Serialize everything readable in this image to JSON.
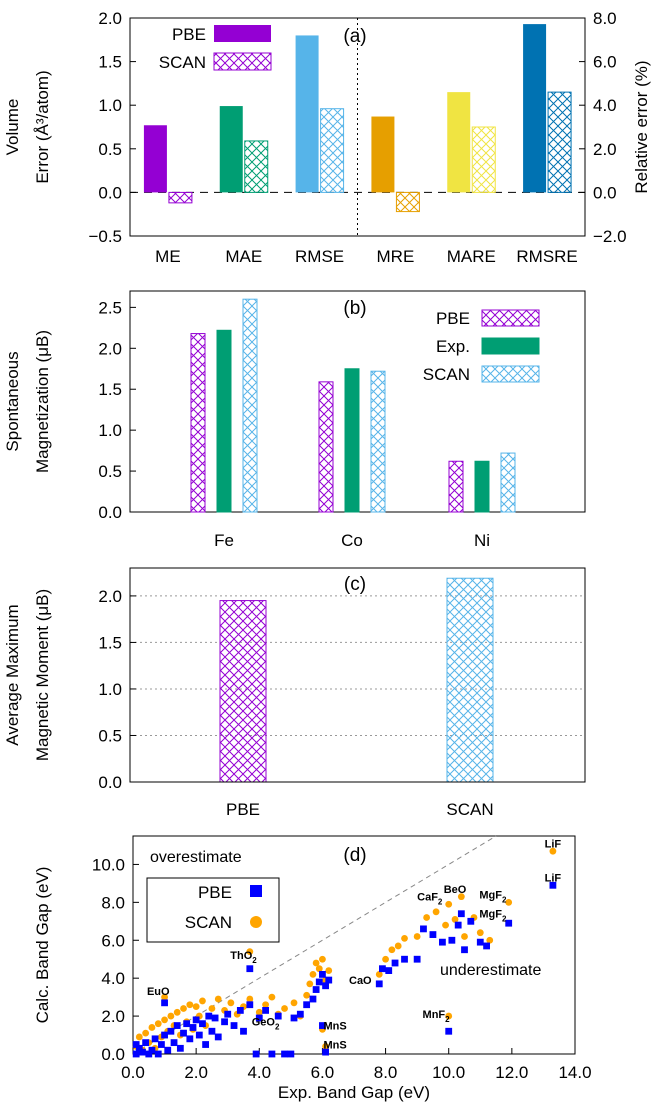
{
  "chart_data": [
    {
      "panel": "(a)",
      "type": "bar",
      "categories": [
        "ME",
        "MAE",
        "RMSE",
        "MRE",
        "MARE",
        "RMSRE"
      ],
      "series": [
        {
          "name": "PBE",
          "values": [
            0.77,
            0.99,
            1.8,
            0.87,
            1.15,
            1.93
          ]
        },
        {
          "name": "SCAN",
          "values": [
            -0.12,
            0.59,
            0.96,
            -0.22,
            0.75,
            1.15
          ]
        }
      ],
      "bar_colors": [
        "#9400d3",
        "#009e73",
        "#56b4e9",
        "#e69f00",
        "#f0e442",
        "#0072b2"
      ],
      "ylabel_lines": [
        "Volume",
        "Error (Å³/atom)"
      ],
      "ylabel_right": "Relative error (%)",
      "ylim": [
        -0.5,
        2.0
      ],
      "ylim_right": [
        -2.0,
        8.0
      ],
      "yticks": [
        "−0.5",
        "0.0",
        "0.5",
        "1.0",
        "1.5",
        "2.0"
      ],
      "yticks_right": [
        "−2.0",
        "0.0",
        "2.0",
        "4.0",
        "6.0",
        "8.0"
      ],
      "legend_position": "top-left",
      "secondary_axis_categories": [
        "MRE",
        "MARE",
        "RMSRE"
      ]
    },
    {
      "panel": "(b)",
      "type": "bar",
      "categories": [
        "Fe",
        "Co",
        "Ni"
      ],
      "series": [
        {
          "name": "PBE",
          "values": [
            2.18,
            1.59,
            0.62
          ],
          "color": "#9400d3"
        },
        {
          "name": "Exp.",
          "values": [
            2.22,
            1.75,
            0.62
          ],
          "color": "#009e73"
        },
        {
          "name": "SCAN",
          "values": [
            2.6,
            1.72,
            0.72
          ],
          "color": "#56b4e9"
        }
      ],
      "ylabel_lines": [
        "Spontaneous",
        "Magnetization (μB)"
      ],
      "ylim": [
        0,
        2.7
      ],
      "yticks": [
        "0.0",
        "0.5",
        "1.0",
        "1.5",
        "2.0",
        "2.5"
      ],
      "legend_position": "top-right"
    },
    {
      "panel": "(c)",
      "type": "bar",
      "categories": [
        "PBE",
        "SCAN"
      ],
      "values": [
        1.95,
        2.19
      ],
      "colors": [
        "#9400d3",
        "#56b4e9"
      ],
      "ylabel_lines": [
        "Average Maximum",
        "Magnetic Moment (μB)"
      ],
      "ylim": [
        0,
        2.3
      ],
      "yticks": [
        "0.0",
        "0.5",
        "1.0",
        "1.5",
        "2.0"
      ],
      "grid": true
    },
    {
      "panel": "(d)",
      "type": "scatter",
      "xlabel": "Exp. Band Gap (eV)",
      "ylabel": "Calc. Band Gap (eV)",
      "xlim": [
        0,
        14
      ],
      "ylim": [
        0,
        11.5
      ],
      "xticks": [
        "0.0",
        "2.0",
        "4.0",
        "6.0",
        "8.0",
        "10.0",
        "12.0",
        "14.0"
      ],
      "yticks": [
        "0.0",
        "2.0",
        "4.0",
        "6.0",
        "8.0",
        "10.0"
      ],
      "reference_line": "y = x",
      "region_labels": {
        "over": "overestimate",
        "under": "underestimate"
      },
      "legend_position": "top-left",
      "series": [
        {
          "name": "PBE",
          "color": "#0000ff",
          "marker": "square",
          "points": [
            [
              0.1,
              0.0
            ],
            [
              0.1,
              0.5
            ],
            [
              0.2,
              0.3
            ],
            [
              0.3,
              0.1
            ],
            [
              0.4,
              0.6
            ],
            [
              0.5,
              0.0
            ],
            [
              0.6,
              0.2
            ],
            [
              0.7,
              0.8
            ],
            [
              0.8,
              0.0
            ],
            [
              0.9,
              0.5
            ],
            [
              1.0,
              1.0
            ],
            [
              1.1,
              0.2
            ],
            [
              1.2,
              1.2
            ],
            [
              1.3,
              0.6
            ],
            [
              1.4,
              1.5
            ],
            [
              1.5,
              0.3
            ],
            [
              1.6,
              1.1
            ],
            [
              1.7,
              1.6
            ],
            [
              1.8,
              0.8
            ],
            [
              1.9,
              1.4
            ],
            [
              2.0,
              1.8
            ],
            [
              2.1,
              1.0
            ],
            [
              2.2,
              1.6
            ],
            [
              2.3,
              0.5
            ],
            [
              2.4,
              2.0
            ],
            [
              2.5,
              1.2
            ],
            [
              2.6,
              1.9
            ],
            [
              2.7,
              0.9
            ],
            [
              2.9,
              1.7
            ],
            [
              3.0,
              2.1
            ],
            [
              3.2,
              1.5
            ],
            [
              3.4,
              2.3
            ],
            [
              3.5,
              1.2
            ],
            [
              3.7,
              2.6
            ],
            [
              3.9,
              0.0
            ],
            [
              4.0,
              1.9
            ],
            [
              4.2,
              2.3
            ],
            [
              4.4,
              0.0
            ],
            [
              4.6,
              2.0
            ],
            [
              4.8,
              0.0
            ],
            [
              5.0,
              0.0
            ],
            [
              5.1,
              1.9
            ],
            [
              5.3,
              2.1
            ],
            [
              5.5,
              2.6
            ],
            [
              5.7,
              2.9
            ],
            [
              5.8,
              3.4
            ],
            [
              5.9,
              3.8
            ],
            [
              6.0,
              4.2
            ],
            [
              6.1,
              3.6
            ],
            [
              6.2,
              3.9
            ],
            [
              6.0,
              1.5
            ],
            [
              6.1,
              0.1
            ],
            [
              7.8,
              3.7
            ],
            [
              7.9,
              4.5
            ],
            [
              8.1,
              4.4
            ],
            [
              8.3,
              4.8
            ],
            [
              8.6,
              5.0
            ],
            [
              9.0,
              5.0
            ],
            [
              9.2,
              6.6
            ],
            [
              9.5,
              6.3
            ],
            [
              9.8,
              5.9
            ],
            [
              10.1,
              6.0
            ],
            [
              10.3,
              6.8
            ],
            [
              10.5,
              5.5
            ],
            [
              10.7,
              7.0
            ],
            [
              11.0,
              5.9
            ],
            [
              11.2,
              5.7
            ],
            [
              10.4,
              7.4
            ],
            [
              10.0,
              1.2
            ],
            [
              11.9,
              6.9
            ],
            [
              13.3,
              8.9
            ],
            [
              1.0,
              2.7
            ],
            [
              3.7,
              4.5
            ]
          ]
        },
        {
          "name": "SCAN",
          "color": "#ffa500",
          "marker": "circle",
          "points": [
            [
              0.1,
              0.4
            ],
            [
              0.2,
              0.9
            ],
            [
              0.3,
              0.2
            ],
            [
              0.4,
              1.1
            ],
            [
              0.5,
              0.6
            ],
            [
              0.6,
              1.4
            ],
            [
              0.7,
              0.3
            ],
            [
              0.8,
              1.6
            ],
            [
              0.9,
              0.9
            ],
            [
              1.0,
              1.8
            ],
            [
              1.1,
              1.2
            ],
            [
              1.2,
              2.0
            ],
            [
              1.3,
              1.5
            ],
            [
              1.4,
              2.2
            ],
            [
              1.5,
              1.0
            ],
            [
              1.6,
              2.4
            ],
            [
              1.7,
              1.7
            ],
            [
              1.8,
              2.6
            ],
            [
              1.9,
              1.3
            ],
            [
              2.0,
              2.5
            ],
            [
              2.1,
              2.0
            ],
            [
              2.2,
              2.8
            ],
            [
              2.3,
              1.5
            ],
            [
              2.5,
              2.4
            ],
            [
              2.7,
              2.9
            ],
            [
              2.9,
              2.3
            ],
            [
              3.1,
              2.7
            ],
            [
              3.3,
              2.1
            ],
            [
              3.5,
              2.5
            ],
            [
              3.7,
              2.9
            ],
            [
              4.0,
              2.2
            ],
            [
              4.2,
              2.6
            ],
            [
              4.4,
              3.0
            ],
            [
              4.6,
              2.1
            ],
            [
              4.8,
              2.4
            ],
            [
              5.1,
              2.7
            ],
            [
              5.3,
              2.0
            ],
            [
              5.5,
              3.1
            ],
            [
              5.6,
              3.7
            ],
            [
              5.7,
              4.2
            ],
            [
              5.8,
              4.8
            ],
            [
              5.9,
              4.5
            ],
            [
              6.0,
              5.0
            ],
            [
              6.1,
              3.9
            ],
            [
              6.2,
              4.4
            ],
            [
              6.0,
              1.3
            ],
            [
              6.1,
              0.4
            ],
            [
              7.8,
              4.2
            ],
            [
              8.0,
              5.0
            ],
            [
              8.2,
              5.5
            ],
            [
              8.4,
              5.7
            ],
            [
              8.6,
              6.1
            ],
            [
              9.0,
              6.2
            ],
            [
              9.3,
              7.2
            ],
            [
              9.6,
              7.5
            ],
            [
              9.9,
              6.8
            ],
            [
              10.2,
              7.1
            ],
            [
              10.5,
              6.2
            ],
            [
              10.8,
              7.2
            ],
            [
              11.0,
              6.4
            ],
            [
              11.3,
              6.0
            ],
            [
              10.4,
              8.3
            ],
            [
              10.0,
              7.9
            ],
            [
              10.0,
              2.0
            ],
            [
              11.9,
              8.0
            ],
            [
              13.3,
              10.7
            ],
            [
              1.0,
              3.0
            ],
            [
              3.7,
              5.4
            ]
          ]
        }
      ],
      "annotations": [
        {
          "text": "LiF",
          "x": 13.3,
          "y": 10.9
        },
        {
          "text": "LiF",
          "x": 13.3,
          "y": 9.1
        },
        {
          "text": "BeO",
          "x": 10.2,
          "y": 8.5
        },
        {
          "text": "CaF",
          "sub": "2",
          "x": 9.4,
          "y": 8.1
        },
        {
          "text": "MgF",
          "sub": "2",
          "x": 11.4,
          "y": 8.2
        },
        {
          "text": "MgF",
          "sub": "2",
          "x": 11.4,
          "y": 7.2
        },
        {
          "text": "ThO",
          "sub": "2",
          "x": 3.5,
          "y": 5.0
        },
        {
          "text": "CaO",
          "x": 7.2,
          "y": 3.7
        },
        {
          "text": "EuO",
          "x": 0.8,
          "y": 3.1
        },
        {
          "text": "GeO",
          "sub": "2",
          "x": 4.2,
          "y": 1.5
        },
        {
          "text": "MnS",
          "x": 6.4,
          "y": 1.3
        },
        {
          "text": "MnS",
          "x": 6.4,
          "y": 0.3
        },
        {
          "text": "MnF",
          "sub": "2",
          "x": 9.6,
          "y": 1.9
        }
      ]
    }
  ]
}
